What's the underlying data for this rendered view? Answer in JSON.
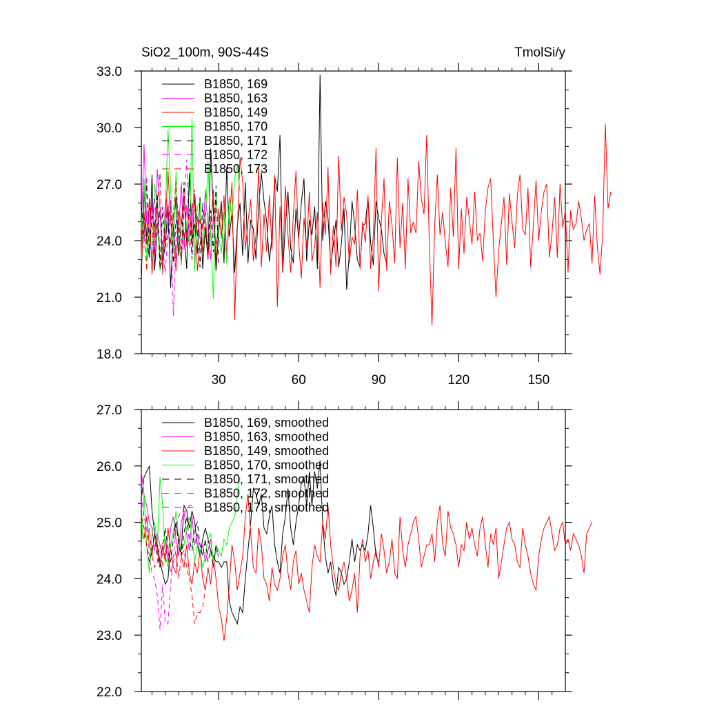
{
  "chart_data": [
    {
      "type": "line",
      "title_left": "SiO2_100m, 90S-44S",
      "title_right": "TmolSi/y",
      "xlim": [
        1,
        160
      ],
      "ylim": [
        18.0,
        33.0
      ],
      "xticks": [
        30,
        60,
        90,
        120,
        150
      ],
      "xtick_labels": [
        "30",
        "60",
        "90",
        "120",
        "150"
      ],
      "yticks": [
        18,
        21,
        24,
        27,
        30,
        33
      ],
      "ytick_labels": [
        "18.0",
        "21.0",
        "24.0",
        "27.0",
        "30.0",
        "33.0"
      ],
      "legend_position": "top-left",
      "series": [
        {
          "name": "B1850, 169",
          "color": "#000000",
          "dash": "solid",
          "values": [
            21.9,
            26.6,
            24.2,
            23.1,
            27.5,
            22.4,
            24.8,
            25.6,
            22.9,
            23.7,
            25.9,
            21.5,
            24.6,
            26.3,
            23.2,
            25.1,
            24.4,
            22.5,
            27.6,
            24.0,
            24.9,
            23.3,
            26.3,
            22.5,
            24.7,
            23.0,
            28.9,
            25.6,
            22.4,
            24.4,
            26.1,
            22.8,
            27.9,
            24.2,
            25.5,
            22.3,
            24.8,
            26.0,
            23.2,
            27.1,
            22.8,
            25.1,
            24.6,
            23.0,
            25.8,
            27.6,
            26.1,
            25.0,
            22.9,
            24.2,
            27.4,
            26.6,
            29.6,
            22.3,
            24.8,
            26.6,
            23.6,
            22.8,
            25.7,
            24.1,
            26.0,
            27.3,
            22.9,
            25.1,
            24.3,
            25.8,
            22.5,
            32.8,
            24.0,
            26.1,
            25.2,
            22.7,
            23.8,
            25.1,
            22.6,
            23.8,
            25.7,
            21.4,
            23.3,
            26.1,
            24.8,
            23.0,
            22.6,
            24.8,
            24.9,
            26.3,
            23.9,
            22.7,
            26.1,
            25.2,
            24.6,
            23.3,
            22.8
          ]
        },
        {
          "name": "B1850, 163",
          "color": "#ff00ff",
          "dash": "solid",
          "values": [
            24.6,
            29.1,
            25.0,
            24.3,
            26.0,
            23.2,
            27.8,
            25.7,
            22.3,
            26.2,
            24.5,
            23.8,
            25.5,
            22.9,
            24.4,
            27.1,
            23.5,
            25.9,
            24.2,
            26.0,
            22.8,
            25.3,
            24.1,
            23.9,
            26.7,
            24.8,
            23.0,
            25.4,
            23.8,
            24.6
          ]
        },
        {
          "name": "B1850, 149",
          "color": "#ff0000",
          "dash": "solid",
          "values": [
            22.6,
            25.5,
            23.8,
            26.1,
            22.2,
            24.6,
            25.9,
            23.1,
            22.6,
            24.9,
            27.7,
            25.0,
            23.9,
            22.4,
            25.6,
            24.9,
            26.5,
            23.7,
            24.2,
            25.6,
            26.5,
            22.4,
            23.8,
            24.9,
            25.5,
            23.1,
            24.8,
            26.7,
            22.8,
            25.7,
            24.1,
            26.4,
            23.2,
            25.0,
            27.1,
            19.8,
            24.5,
            28.4,
            27.1,
            23.5,
            25.0,
            26.2,
            22.9,
            24.3,
            27.9,
            22.6,
            25.4,
            23.4,
            26.4,
            23.5,
            27.5,
            20.5,
            25.8,
            22.5,
            26.9,
            24.3,
            22.3,
            25.4,
            27.7,
            23.9,
            22.0,
            25.2,
            23.6,
            26.6,
            22.9,
            23.7,
            25.5,
            21.5,
            26.0,
            24.3,
            27.9,
            22.2,
            24.8,
            22.6,
            28.5,
            24.5,
            26.3,
            25.4,
            22.8,
            24.2,
            23.8,
            26.7,
            22.5,
            25.0,
            23.9,
            26.4,
            22.5,
            24.3,
            28.9,
            21.3,
            25.0,
            27.3,
            22.4,
            26.1,
            24.8,
            22.8,
            28.4,
            23.6,
            26.0,
            22.5,
            27.3,
            24.4,
            25.0,
            24.4,
            28.2,
            26.2,
            25.4,
            29.6,
            23.8,
            19.5,
            24.8,
            27.5,
            24.3,
            25.5,
            23.9,
            22.6,
            26.8,
            24.2,
            28.9,
            22.5,
            25.7,
            23.3,
            26.3,
            25.1,
            23.8,
            26.6,
            24.0,
            24.4,
            22.9,
            25.6,
            26.8,
            27.3,
            23.9,
            21.0,
            23.5,
            24.9,
            26.3,
            22.7,
            26.5,
            25.0,
            23.6,
            26.4,
            27.5,
            24.6,
            24.3,
            26.8,
            22.6,
            24.8,
            27.2,
            24.0,
            25.6,
            26.6,
            27.0,
            23.1,
            24.4,
            26.3,
            23.1,
            27.0,
            24.7,
            25.6,
            22.3,
            25.6,
            24.6,
            24.9,
            26.1,
            25.2,
            24.0,
            24.6,
            24.9,
            22.8,
            26.4,
            23.7,
            22.2,
            24.4,
            30.2,
            25.7,
            26.6
          ]
        },
        {
          "name": "B1850, 170",
          "color": "#00ff00",
          "dash": "solid",
          "values": [
            23.0,
            27.3,
            22.9,
            24.5,
            23.1,
            27.0,
            25.7,
            22.4,
            23.6,
            25.5,
            29.9,
            26.8,
            23.5,
            27.7,
            24.0,
            22.8,
            26.3,
            24.6,
            23.9,
            30.5,
            22.4,
            25.8,
            26.1,
            23.4,
            24.9,
            28.2,
            24.3,
            20.9,
            26.6,
            24.2,
            23.3,
            25.5,
            22.8,
            26.3,
            25.3,
            27.3,
            28.0,
            26.6
          ]
        },
        {
          "name": "B1850, 171",
          "color": "#000000",
          "dash": "dash",
          "values": [
            25.9,
            24.1,
            27.0,
            23.4,
            25.3,
            24.7,
            26.5,
            22.5,
            25.8,
            23.7,
            24.4,
            26.0,
            22.8,
            25.1,
            24.5,
            23.2,
            27.1,
            24.0,
            25.7,
            23.0,
            26.5,
            24.4,
            22.6,
            26.0,
            24.3,
            23.8,
            25.6,
            23.4,
            26.9,
            22.7
          ]
        },
        {
          "name": "B1850, 172",
          "color": "#ff00ff",
          "dash": "dash",
          "values": [
            25.0,
            23.6,
            27.4,
            24.4,
            22.9,
            26.3,
            24.2,
            25.5,
            23.7,
            22.3,
            24.6,
            26.2,
            20.0,
            24.0,
            25.4,
            22.7,
            25.7,
            28.3,
            23.6,
            24.1
          ]
        },
        {
          "name": "B1850, 173",
          "color": "#ff0000",
          "dash": "dash",
          "values": [
            23.9,
            25.3,
            22.4,
            26.3,
            24.7,
            23.2,
            25.9,
            27.6,
            22.2,
            24.8,
            26.0,
            23.8,
            25.4,
            27.1,
            24.6,
            22.9,
            26.3,
            24.1,
            25.7,
            23.6,
            26.7,
            24.3,
            25.2,
            23.4,
            24.5
          ]
        }
      ]
    },
    {
      "type": "line",
      "xlim": [
        1,
        160
      ],
      "ylim": [
        22.0,
        27.0
      ],
      "xticks": [
        30,
        60,
        90,
        120,
        150
      ],
      "yticks": [
        22,
        23,
        24,
        25,
        26,
        27
      ],
      "ytick_labels": [
        "22.0",
        "23.0",
        "24.0",
        "25.0",
        "26.0",
        "27.0"
      ],
      "legend_position": "top-left",
      "series": [
        {
          "name": "B1850, 169, smoothed",
          "color": "#000000",
          "dash": "solid",
          "values": [
            25.4,
            25.8,
            25.9,
            26.0,
            25.2,
            24.8,
            24.6,
            24.3,
            24.1,
            23.9,
            24.0,
            24.6,
            24.8,
            25.0,
            24.7,
            24.5,
            25.3,
            25.2,
            24.9,
            25.2,
            25.0,
            24.6,
            24.4,
            24.7,
            24.9,
            24.7,
            24.5,
            24.4,
            24.3,
            24.3,
            24.2,
            24.3,
            24.3,
            23.6,
            23.4,
            23.3,
            23.2,
            23.5,
            23.4,
            24.0,
            24.5,
            25.0,
            25.6,
            25.5,
            25.3,
            25.5,
            24.9,
            24.8,
            25.1,
            25.3,
            24.6,
            24.3,
            24.1,
            24.8,
            25.1,
            25.6,
            24.9,
            24.6,
            25.0,
            25.3,
            25.7,
            25.8,
            25.3,
            25.9,
            25.3,
            25.9,
            25.6,
            26.1,
            25.0,
            24.4,
            24.1,
            24.3,
            23.9,
            23.7,
            24.2,
            24.1,
            23.9,
            24.0,
            24.3,
            24.7,
            24.3,
            24.6,
            24.5,
            24.6,
            24.5,
            24.8,
            25.3,
            24.9,
            24.4,
            24.3
          ]
        },
        {
          "name": "B1850, 163, smoothed",
          "color": "#ff00ff",
          "dash": "solid",
          "values": [
            25.9,
            25.5,
            25.3,
            25.0,
            24.9,
            24.5,
            24.8,
            24.6,
            24.4,
            24.7,
            24.3,
            24.9,
            25.1,
            24.7,
            24.4,
            25.0,
            25.2,
            24.8,
            24.5,
            25.1,
            24.6,
            24.8,
            24.4,
            24.6,
            24.3,
            24.5,
            24.7,
            24.3,
            24.5,
            24.4
          ]
        },
        {
          "name": "B1850, 149, smoothed",
          "color": "#ff0000",
          "dash": "solid",
          "values": [
            24.9,
            24.7,
            25.1,
            24.6,
            24.4,
            24.8,
            24.5,
            24.2,
            24.6,
            24.3,
            24.9,
            24.5,
            24.2,
            24.1,
            24.8,
            24.4,
            24.2,
            24.6,
            24.1,
            23.9,
            24.3,
            24.1,
            24.5,
            24.0,
            23.8,
            24.2,
            23.9,
            24.4,
            24.0,
            23.5,
            23.3,
            22.9,
            23.3,
            23.9,
            24.6,
            24.3,
            23.8,
            24.1,
            24.4,
            25.1,
            25.5,
            24.8,
            24.2,
            24.1,
            24.9,
            24.6,
            24.0,
            23.9,
            23.6,
            24.2,
            23.9,
            23.8,
            24.0,
            24.4,
            24.6,
            24.1,
            23.8,
            24.3,
            24.5,
            23.9,
            24.1,
            23.8,
            23.6,
            23.4,
            24.2,
            24.6,
            24.4,
            24.3,
            25.0,
            24.7,
            25.3,
            24.6,
            24.2,
            23.9,
            23.8,
            24.1,
            24.3,
            24.0,
            23.6,
            23.8,
            24.1,
            23.4,
            24.4,
            24.7,
            24.3,
            24.5,
            24.0,
            24.3,
            24.5,
            24.2,
            24.8,
            24.5,
            24.1,
            24.3,
            24.7,
            24.1,
            24.0,
            25.1,
            24.5,
            24.2,
            24.6,
            24.8,
            25.0,
            25.1,
            24.7,
            24.2,
            24.4,
            24.6,
            24.6,
            24.8,
            24.3,
            25.0,
            25.3,
            24.6,
            24.4,
            25.2,
            24.9,
            24.8,
            24.6,
            24.2,
            24.6,
            24.5,
            25.0,
            24.7,
            24.9,
            24.6,
            24.4,
            24.9,
            25.1,
            24.6,
            24.2,
            24.8,
            24.6,
            24.9,
            24.0,
            24.3,
            24.6,
            24.9,
            25.0,
            24.7,
            24.6,
            24.3,
            24.2,
            24.9,
            24.6,
            24.4,
            24.1,
            23.9,
            23.8,
            24.4,
            24.7,
            24.9,
            25.0,
            25.1,
            24.8,
            24.5,
            24.6,
            24.9,
            25.0,
            24.6,
            24.7,
            24.5,
            24.8,
            24.7,
            24.6,
            24.4,
            24.1,
            24.8,
            24.9,
            25.0
          ]
        },
        {
          "name": "B1850, 170, smoothed",
          "color": "#00ff00",
          "dash": "solid",
          "values": [
            24.5,
            25.5,
            24.6,
            24.1,
            24.8,
            25.0,
            24.6,
            25.8,
            25.3,
            24.4,
            24.2,
            24.6,
            24.8,
            25.2,
            24.7,
            24.5,
            24.6,
            24.9,
            25.1,
            24.7,
            24.3,
            24.6,
            24.5,
            24.2,
            24.4,
            24.7,
            24.8,
            24.3,
            24.6,
            24.5,
            24.4,
            24.7,
            24.6,
            24.9,
            25.0,
            25.1,
            25.5,
            25.8
          ]
        },
        {
          "name": "B1850, 171, smoothed",
          "color": "#000000",
          "dash": "dash",
          "values": [
            25.1,
            24.9,
            24.6,
            24.3,
            24.5,
            24.8,
            24.4,
            24.2,
            24.6,
            24.9,
            24.5,
            24.3,
            24.7,
            25.0,
            24.6,
            24.4,
            24.8,
            25.1,
            24.7,
            24.5,
            24.9,
            25.0,
            24.6,
            24.4,
            24.7,
            24.3,
            24.5,
            24.2,
            24.6,
            24.4
          ]
        },
        {
          "name": "B1850, 172, smoothed",
          "color": "#ff00ff",
          "dash": "dash",
          "values": [
            25.5,
            25.1,
            24.9,
            24.4,
            24.1,
            24.0,
            23.7,
            23.1,
            23.9,
            23.2,
            23.2,
            23.9,
            24.4,
            24.9,
            25.1,
            25.2,
            25.2,
            25.2,
            25.3,
            25.3
          ]
        },
        {
          "name": "B1850, 173, smoothed",
          "color": "#ff0000",
          "dash": "dash",
          "values": [
            25.1,
            24.9,
            24.6,
            24.9,
            24.4,
            24.2,
            24.3,
            24.6,
            24.2,
            24.5,
            24.4,
            24.1,
            24.3,
            24.5,
            24.0,
            24.4,
            24.5,
            24.2,
            24.0,
            23.7,
            23.2,
            23.4,
            23.4,
            23.5,
            23.8
          ]
        }
      ]
    }
  ]
}
